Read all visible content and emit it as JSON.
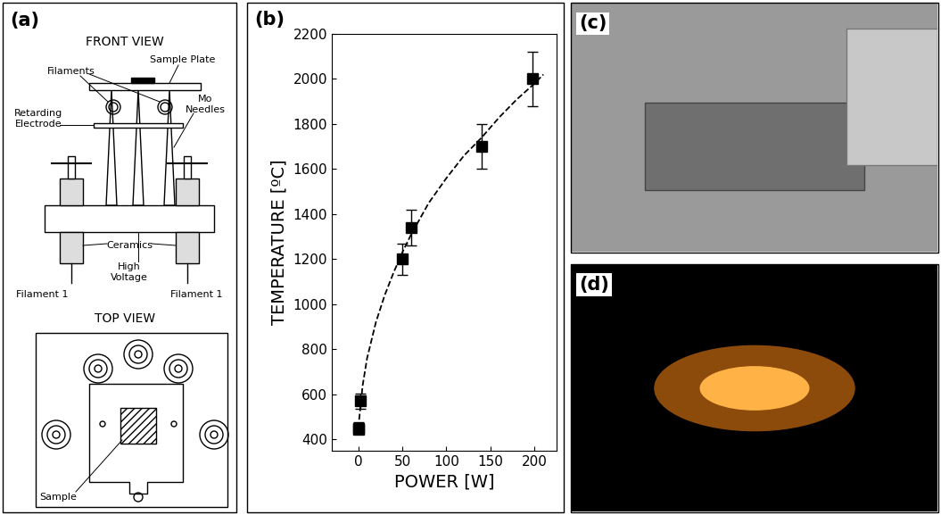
{
  "chart_data": {
    "type": "scatter",
    "panel_label": "(b)",
    "x_label": "POWER [W]",
    "y_label": "TEMPERATURE [ºC]",
    "xlim": [
      -30,
      225
    ],
    "xticks": [
      0,
      50,
      100,
      150,
      200
    ],
    "ylim": [
      350,
      2200
    ],
    "yticks": [
      400,
      600,
      800,
      1000,
      1200,
      1400,
      1600,
      1800,
      2000,
      2200
    ],
    "series": [
      {
        "type": "scatter",
        "marker": "square",
        "color": "#000000",
        "x": [
          0,
          0,
          2,
          50,
          60,
          140,
          198
        ],
        "values": [
          450,
          445,
          570,
          1200,
          1340,
          1700,
          2000
        ],
        "errors": [
          25,
          15,
          35,
          70,
          80,
          100,
          120
        ]
      },
      {
        "type": "line",
        "line_style": "dashed",
        "color": "#000000",
        "x": [
          0,
          5,
          10,
          20,
          30,
          40,
          50,
          60,
          80,
          100,
          120,
          140,
          160,
          180,
          200,
          210
        ],
        "values": [
          450,
          640,
          760,
          920,
          1040,
          1140,
          1230,
          1310,
          1450,
          1560,
          1660,
          1740,
          1830,
          1910,
          1980,
          2020
        ]
      }
    ]
  },
  "diagram": {
    "panel_label": "(a)",
    "front_view": {
      "title": "FRONT VIEW",
      "filaments": "Filaments",
      "sample_plate": "Sample Plate",
      "retarding_electrode": "Retarding\nElectrode",
      "needles": "Mo\nNeedles",
      "ceramics": "Ceramics",
      "high_voltage": "High\nVoltage",
      "filament_left": "Filament 1",
      "filament_right": "Filament 1"
    },
    "top_view": {
      "title": "TOP VIEW",
      "sample": "Sample"
    }
  },
  "photos": [
    {
      "panel_label": "(c)"
    },
    {
      "panel_label": "(d)"
    }
  ]
}
